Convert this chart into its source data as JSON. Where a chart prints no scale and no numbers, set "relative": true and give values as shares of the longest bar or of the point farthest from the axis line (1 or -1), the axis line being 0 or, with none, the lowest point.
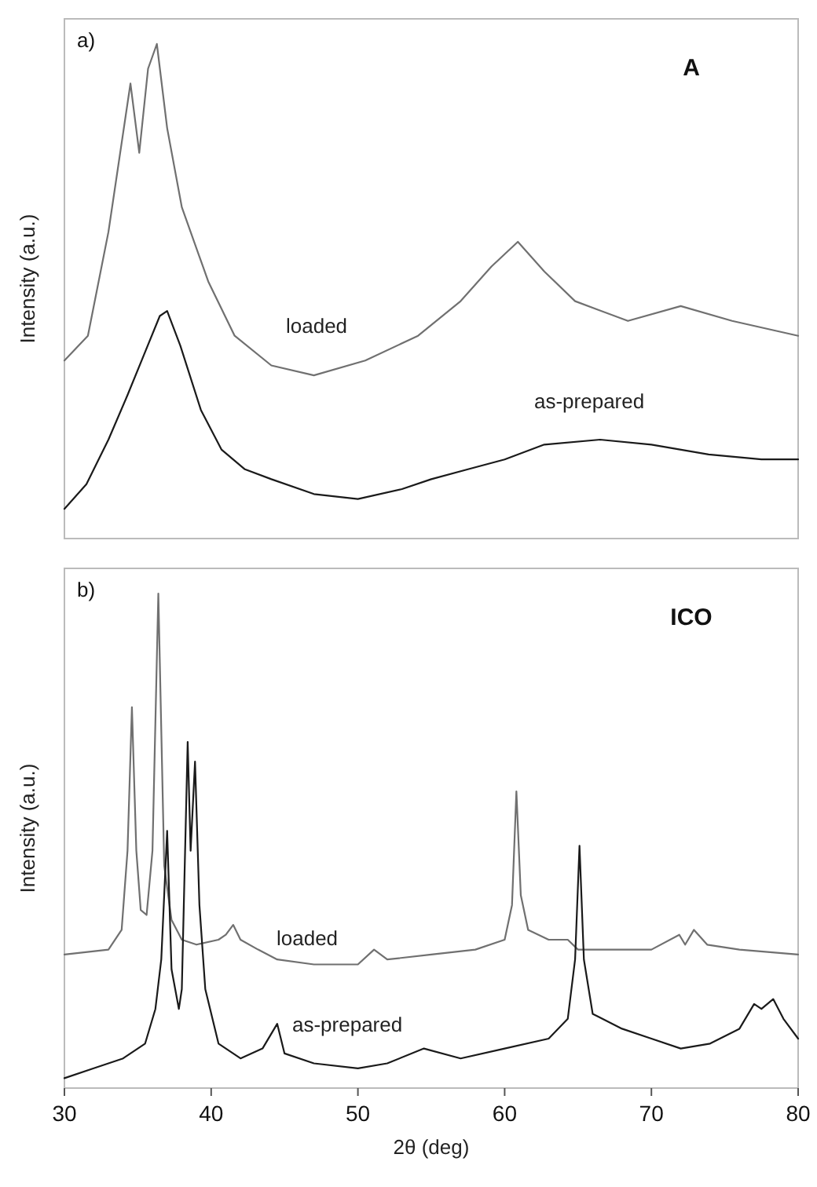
{
  "chart_data": [
    {
      "type": "line",
      "title": "A",
      "annotations": [
        "a)"
      ],
      "ylabel": "Intensity (a.u.)",
      "relative": true,
      "xlim": [
        30,
        80
      ],
      "tick_labels": false,
      "marker": "none",
      "line_style": "solid",
      "series": [
        {
          "name": "loaded",
          "color": "#707070",
          "x": [
            30,
            31.6,
            33,
            34.1,
            34.5,
            35.1,
            35.7,
            36.3,
            37,
            38,
            39.8,
            41.6,
            44.1,
            47,
            50.5,
            54.1,
            57,
            59.1,
            60.9,
            62.7,
            64.8,
            68.4,
            72,
            75.5,
            80
          ],
          "values": [
            0.36,
            0.41,
            0.62,
            0.84,
            0.92,
            0.78,
            0.95,
            1.0,
            0.83,
            0.67,
            0.52,
            0.41,
            0.35,
            0.33,
            0.36,
            0.41,
            0.48,
            0.55,
            0.6,
            0.54,
            0.48,
            0.44,
            0.47,
            0.44,
            0.41
          ]
        },
        {
          "name": "as-prepared",
          "color": "#1a1a1a",
          "x": [
            30,
            31.5,
            33,
            34.3,
            35.4,
            36.5,
            37,
            37.9,
            39.3,
            40.7,
            42.3,
            44.1,
            47,
            50,
            53,
            55,
            57.5,
            60,
            62.7,
            66.5,
            70,
            73.9,
            77.5,
            80
          ],
          "values": [
            0.06,
            0.11,
            0.2,
            0.29,
            0.37,
            0.45,
            0.46,
            0.39,
            0.26,
            0.18,
            0.14,
            0.12,
            0.09,
            0.08,
            0.1,
            0.12,
            0.14,
            0.16,
            0.19,
            0.2,
            0.19,
            0.17,
            0.16,
            0.16
          ]
        }
      ]
    },
    {
      "type": "line",
      "title": "ICO",
      "annotations": [
        "b)"
      ],
      "xlabel": "2θ (deg)",
      "ylabel": "Intensity (a.u.)",
      "relative": true,
      "xlim": [
        30,
        80
      ],
      "xticks": [
        30,
        40,
        50,
        60,
        70,
        80
      ],
      "tick_labels": "x",
      "marker": "none",
      "line_style": "solid",
      "series": [
        {
          "name": "loaded",
          "color": "#707070",
          "x": [
            30,
            33,
            33.9,
            34.3,
            34.6,
            34.9,
            35.2,
            35.6,
            36,
            36.4,
            36.8,
            37.3,
            38,
            39,
            40.5,
            41,
            41.5,
            42,
            43.2,
            44.5,
            47,
            50,
            51.1,
            52,
            55,
            58,
            60,
            60.5,
            60.8,
            61.1,
            61.6,
            63,
            64.3,
            65,
            67,
            70,
            71.9,
            72.3,
            72.9,
            73.8,
            76,
            80
          ],
          "values": [
            0.27,
            0.28,
            0.32,
            0.48,
            0.77,
            0.48,
            0.36,
            0.35,
            0.48,
            1.0,
            0.45,
            0.34,
            0.3,
            0.29,
            0.3,
            0.31,
            0.33,
            0.3,
            0.28,
            0.26,
            0.25,
            0.25,
            0.28,
            0.26,
            0.27,
            0.28,
            0.3,
            0.37,
            0.6,
            0.39,
            0.32,
            0.3,
            0.3,
            0.28,
            0.28,
            0.28,
            0.31,
            0.29,
            0.32,
            0.29,
            0.28,
            0.27
          ]
        },
        {
          "name": "as-prepared",
          "color": "#1a1a1a",
          "x": [
            30,
            32,
            34,
            35.5,
            36.2,
            36.6,
            37,
            37.3,
            37.8,
            38,
            38.4,
            38.6,
            38.9,
            39.2,
            39.6,
            40.5,
            42,
            43.5,
            44.5,
            45,
            47,
            50,
            52,
            54.5,
            57,
            60,
            63,
            64.3,
            64.8,
            65.1,
            65.4,
            66,
            68,
            70,
            72,
            74,
            76,
            77,
            77.5,
            78.3,
            79,
            80
          ],
          "values": [
            0.02,
            0.04,
            0.06,
            0.09,
            0.16,
            0.26,
            0.52,
            0.24,
            0.16,
            0.2,
            0.7,
            0.48,
            0.66,
            0.37,
            0.2,
            0.09,
            0.06,
            0.08,
            0.13,
            0.07,
            0.05,
            0.04,
            0.05,
            0.08,
            0.06,
            0.08,
            0.1,
            0.14,
            0.26,
            0.49,
            0.26,
            0.15,
            0.12,
            0.1,
            0.08,
            0.09,
            0.12,
            0.17,
            0.16,
            0.18,
            0.14,
            0.1
          ]
        }
      ]
    }
  ]
}
